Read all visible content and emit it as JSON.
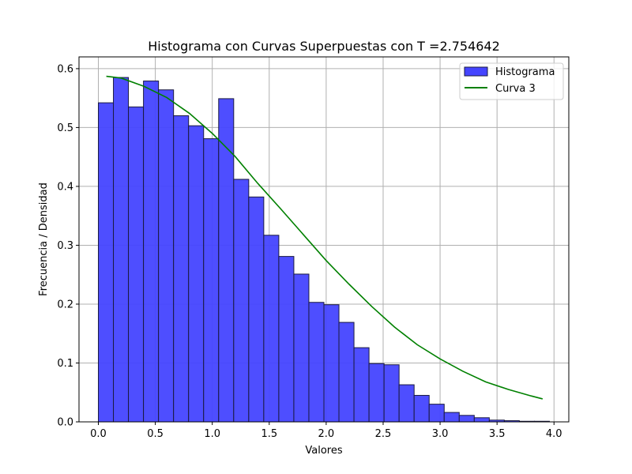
{
  "chart_data": {
    "type": "bar",
    "title": "Histograma con Curvas Superpuestas con T =2.754642",
    "xlabel": "Valores",
    "ylabel": "Frecuencia / Densidad",
    "xlim": [
      -0.17,
      4.13
    ],
    "ylim": [
      0,
      0.62
    ],
    "xticks": [
      0.0,
      0.5,
      1.0,
      1.5,
      2.0,
      2.5,
      3.0,
      3.5,
      4.0
    ],
    "xtick_labels": [
      "0.0",
      "0.5",
      "1.0",
      "1.5",
      "2.0",
      "2.5",
      "3.0",
      "3.5",
      "4.0"
    ],
    "yticks": [
      0.0,
      0.1,
      0.2,
      0.3,
      0.4,
      0.5,
      0.6
    ],
    "ytick_labels": [
      "0.0",
      "0.1",
      "0.2",
      "0.3",
      "0.4",
      "0.5",
      "0.6"
    ],
    "grid": true,
    "legend_position": "top-right",
    "histogram": {
      "name": "Histograma",
      "color": "#4444ff",
      "edge_color": "#1a1a40",
      "bin_edges": [
        0.0,
        0.132,
        0.264,
        0.396,
        0.528,
        0.66,
        0.792,
        0.924,
        1.056,
        1.188,
        1.32,
        1.452,
        1.584,
        1.716,
        1.848,
        1.98,
        2.112,
        2.244,
        2.376,
        2.508,
        2.64,
        2.772,
        2.904,
        3.036,
        3.168,
        3.3,
        3.432,
        3.564,
        3.696,
        3.828,
        3.96
      ],
      "values": [
        0.542,
        0.585,
        0.535,
        0.579,
        0.564,
        0.52,
        0.503,
        0.481,
        0.549,
        0.412,
        0.382,
        0.317,
        0.281,
        0.251,
        0.203,
        0.199,
        0.169,
        0.126,
        0.099,
        0.097,
        0.063,
        0.045,
        0.03,
        0.016,
        0.011,
        0.007,
        0.003,
        0.002,
        0.001,
        0.001
      ]
    },
    "curve": {
      "name": "Curva 3",
      "color": "#008000",
      "x": [
        0.07,
        0.2,
        0.4,
        0.6,
        0.8,
        1.0,
        1.2,
        1.4,
        1.6,
        1.8,
        2.0,
        2.2,
        2.4,
        2.6,
        2.8,
        3.0,
        3.2,
        3.4,
        3.6,
        3.8,
        3.9
      ],
      "y": [
        0.587,
        0.584,
        0.57,
        0.551,
        0.524,
        0.49,
        0.451,
        0.405,
        0.362,
        0.318,
        0.274,
        0.234,
        0.196,
        0.161,
        0.131,
        0.107,
        0.086,
        0.068,
        0.055,
        0.044,
        0.039
      ]
    }
  }
}
